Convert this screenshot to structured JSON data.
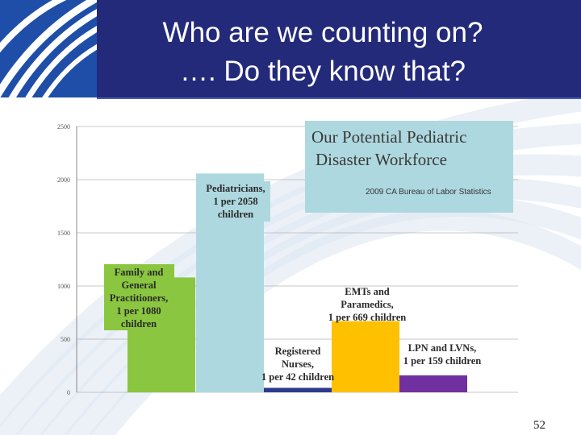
{
  "slide": {
    "title_line1": "Who are we counting on?",
    "title_line2": "…. Do they know that?",
    "page_number": "52",
    "colors": {
      "header": "#242a7a",
      "logo": "#1f4ea8",
      "background_arcs": "#dde6f3"
    }
  },
  "chart_data": {
    "type": "bar",
    "title": "Our Potential Pediatric Disaster Workforce",
    "source": "2009 CA Bureau of Labor Statistics",
    "ylim": [
      0,
      2500
    ],
    "yticks": [
      0,
      500,
      1000,
      1500,
      2000,
      2500
    ],
    "grid": true,
    "categories": [
      "Family and General Practitioners",
      "Pediatricians",
      "Registered Nurses",
      "EMTs and Paramedics",
      "LPN and LVNs"
    ],
    "values": [
      1080,
      2058,
      42,
      669,
      159
    ],
    "colors": [
      "#8ac63f",
      "#aed8df",
      "#2c3a8c",
      "#ffc000",
      "#7030a0"
    ],
    "annotations": [
      {
        "lines": [
          "Family and",
          "General",
          "Practitioners,",
          "1 per 1080",
          "children"
        ],
        "boxed": true,
        "box_color": "#8ac63f"
      },
      {
        "lines": [
          "Pediatricians,",
          "1 per 2058",
          "children"
        ],
        "boxed": true,
        "box_color": "#aed8df"
      },
      {
        "lines": [
          "Registered",
          "Nurses,",
          "1 per 42 children"
        ],
        "boxed": false
      },
      {
        "lines": [
          "EMTs and",
          "Paramedics,",
          "1 per 669 children"
        ],
        "boxed": false
      },
      {
        "lines": [
          "LPN and LVNs,",
          "1 per 159 children"
        ],
        "boxed": false
      }
    ],
    "legend_box_color": "#aed8df"
  }
}
